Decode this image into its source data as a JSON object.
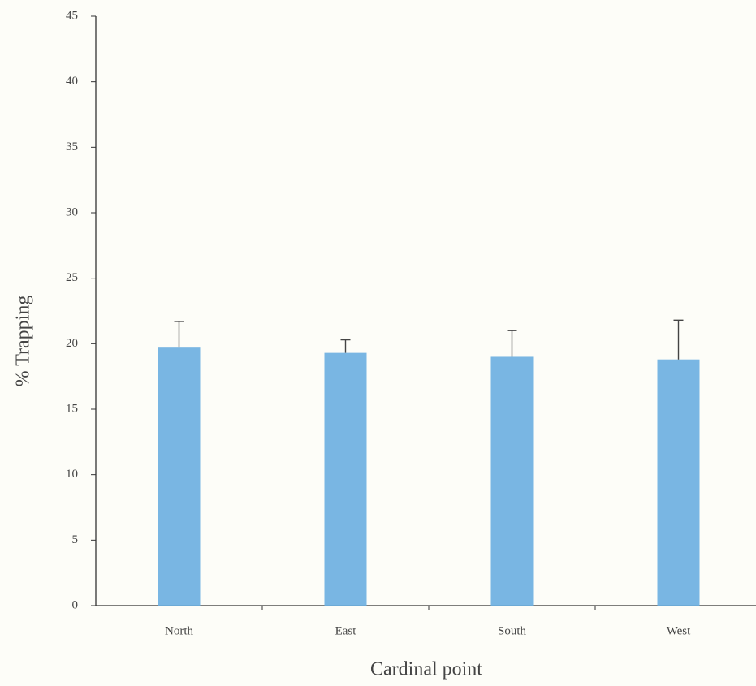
{
  "chart_data": {
    "type": "bar",
    "x_label": "Cardinal point",
    "y_label": "% Trapping",
    "categories": [
      "North",
      "East",
      "South",
      "West"
    ],
    "values": [
      19.7,
      19.3,
      19.0,
      18.8
    ],
    "errors": [
      2.0,
      1.0,
      2.0,
      3.0
    ],
    "color": "#6aaee0",
    "ylim": [
      0,
      45
    ],
    "yticks": [
      0,
      5,
      10,
      15,
      20,
      25,
      30,
      35,
      40,
      45
    ],
    "grid": false
  }
}
